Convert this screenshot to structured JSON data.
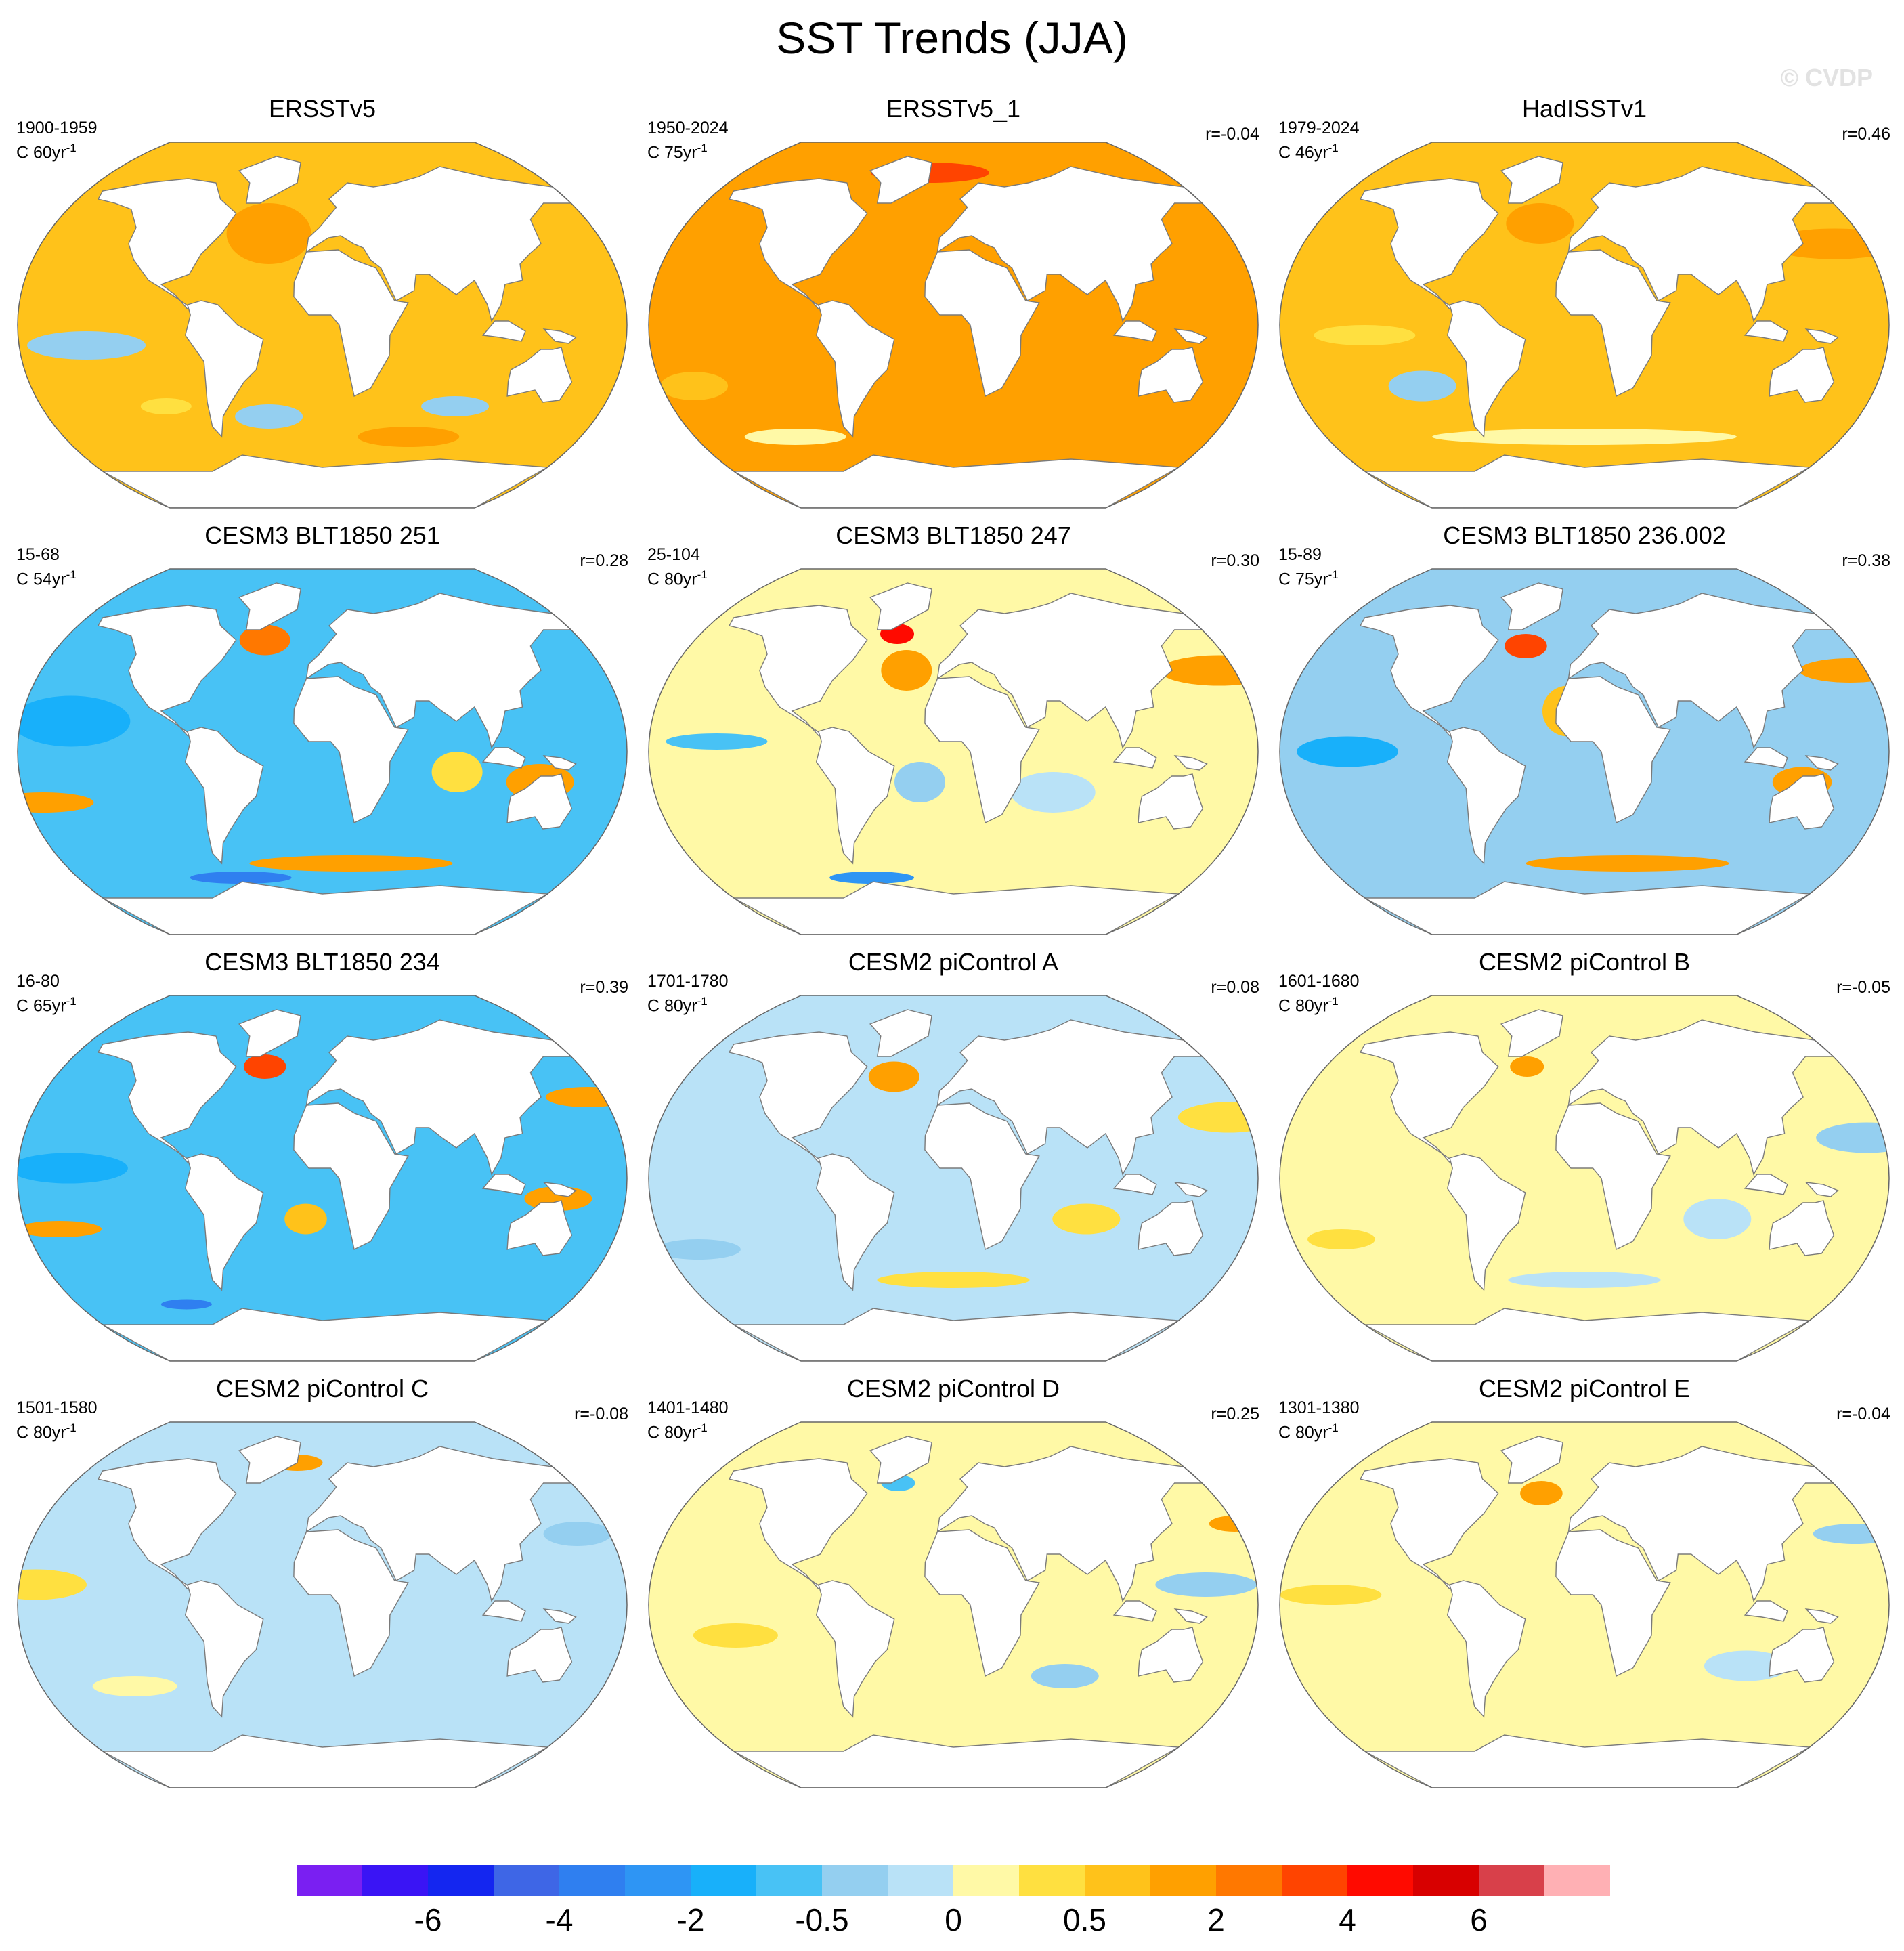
{
  "title": "SST Trends (JJA)",
  "watermark": "© CVDP",
  "panels": [
    {
      "title": "ERSSTv5",
      "period": "1900-1959",
      "units_prefix": "C 60yr",
      "units_exp": "-1",
      "r": "",
      "base_level": 0.6,
      "anomalies": [
        {
          "lon": 160,
          "lat": 20,
          "w": 90,
          "h": 40,
          "v": 0.9
        },
        {
          "lon": -140,
          "lat": -10,
          "w": 70,
          "h": 14,
          "v": -0.3
        },
        {
          "lon": 85,
          "lat": -40,
          "w": 40,
          "h": 10,
          "v": -0.4
        },
        {
          "lon": -100,
          "lat": -40,
          "w": 30,
          "h": 8,
          "v": 0.3
        },
        {
          "lon": -35,
          "lat": -45,
          "w": 40,
          "h": 12,
          "v": -0.3
        },
        {
          "lon": 60,
          "lat": -55,
          "w": 60,
          "h": 10,
          "v": 1.5
        },
        {
          "lon": -35,
          "lat": 45,
          "w": 50,
          "h": 30,
          "v": 1.1
        }
      ]
    },
    {
      "title": "ERSSTv5_1",
      "period": "1950-2024",
      "units_prefix": "C 75yr",
      "units_exp": "-1",
      "r": "r=-0.04",
      "base_level": 1.1,
      "anomalies": [
        {
          "lon": 80,
          "lat": -20,
          "w": 60,
          "h": 50,
          "v": 1.5
        },
        {
          "lon": 160,
          "lat": 20,
          "w": 80,
          "h": 30,
          "v": 1.4
        },
        {
          "lon": -30,
          "lat": 20,
          "w": 40,
          "h": 60,
          "v": 1.4
        },
        {
          "lon": -20,
          "lat": 75,
          "w": 70,
          "h": 10,
          "v": 3.5
        },
        {
          "lon": -110,
          "lat": -55,
          "w": 60,
          "h": 8,
          "v": 0.2
        },
        {
          "lon": -160,
          "lat": -30,
          "w": 40,
          "h": 14,
          "v": 0.5
        }
      ]
    },
    {
      "title": "HadISSTv1",
      "period": "1979-2024",
      "units_prefix": "C 46yr",
      "units_exp": "-1",
      "r": "r=0.46",
      "base_level": 0.9,
      "anomalies": [
        {
          "lon": 160,
          "lat": 40,
          "w": 80,
          "h": 15,
          "v": 1.4
        },
        {
          "lon": -130,
          "lat": -5,
          "w": 60,
          "h": 10,
          "v": 0.3
        },
        {
          "lon": -100,
          "lat": -30,
          "w": 40,
          "h": 15,
          "v": -0.5
        },
        {
          "lon": 0,
          "lat": -55,
          "w": 180,
          "h": 8,
          "v": 0.1
        },
        {
          "lon": -30,
          "lat": 50,
          "w": 40,
          "h": 20,
          "v": 1.4
        }
      ]
    },
    {
      "title": "CESM3 BLT1850 251",
      "period": "15-68",
      "units_prefix": "C 54yr",
      "units_exp": "-1",
      "r": "r=0.28",
      "base_level": -0.7,
      "anomalies": [
        {
          "lon": 130,
          "lat": -15,
          "w": 40,
          "h": 18,
          "v": 1.3
        },
        {
          "lon": -170,
          "lat": -25,
          "w": 60,
          "h": 10,
          "v": 1.2
        },
        {
          "lon": -150,
          "lat": 15,
          "w": 70,
          "h": 25,
          "v": -1.6
        },
        {
          "lon": -40,
          "lat": 55,
          "w": 30,
          "h": 15,
          "v": 2.2
        },
        {
          "lon": 20,
          "lat": -55,
          "w": 120,
          "h": 8,
          "v": 1.2
        },
        {
          "lon": -60,
          "lat": -62,
          "w": 60,
          "h": 6,
          "v": -3.5
        },
        {
          "lon": 80,
          "lat": -10,
          "w": 30,
          "h": 20,
          "v": 0.3
        }
      ]
    },
    {
      "title": "CESM3 BLT1850 247",
      "period": "25-104",
      "units_prefix": "C 80yr",
      "units_exp": "-1",
      "r": "r=0.30",
      "base_level": 0.2,
      "anomalies": [
        {
          "lon": 170,
          "lat": 40,
          "w": 70,
          "h": 15,
          "v": 1.4
        },
        {
          "lon": -40,
          "lat": 58,
          "w": 20,
          "h": 10,
          "v": 4.5
        },
        {
          "lon": -30,
          "lat": 40,
          "w": 30,
          "h": 20,
          "v": 1.4
        },
        {
          "lon": -140,
          "lat": 5,
          "w": 60,
          "h": 8,
          "v": -1.0
        },
        {
          "lon": -60,
          "lat": -62,
          "w": 50,
          "h": 6,
          "v": -3.0
        },
        {
          "lon": -20,
          "lat": -15,
          "w": 30,
          "h": 20,
          "v": -0.5
        },
        {
          "lon": 60,
          "lat": -20,
          "w": 50,
          "h": 20,
          "v": -0.2
        }
      ]
    },
    {
      "title": "CESM3 BLT1850 236.002",
      "period": "15-89",
      "units_prefix": "C 75yr",
      "units_exp": "-1",
      "r": "r=0.38",
      "base_level": -0.4,
      "anomalies": [
        {
          "lon": 170,
          "lat": 40,
          "w": 60,
          "h": 12,
          "v": 1.9
        },
        {
          "lon": -40,
          "lat": 52,
          "w": 25,
          "h": 12,
          "v": 3.5
        },
        {
          "lon": -140,
          "lat": 0,
          "w": 60,
          "h": 15,
          "v": -1.8
        },
        {
          "lon": 130,
          "lat": -15,
          "w": 35,
          "h": 15,
          "v": 1.3
        },
        {
          "lon": 30,
          "lat": -55,
          "w": 120,
          "h": 8,
          "v": 1.6
        },
        {
          "lon": -10,
          "lat": 20,
          "w": 30,
          "h": 25,
          "v": 0.8
        }
      ]
    },
    {
      "title": "CESM3 BLT1850 234",
      "period": "16-80",
      "units_prefix": "C 65yr",
      "units_exp": "-1",
      "r": "r=0.39",
      "base_level": -0.9,
      "anomalies": [
        {
          "lon": 170,
          "lat": 40,
          "w": 50,
          "h": 10,
          "v": 1.6
        },
        {
          "lon": -40,
          "lat": 55,
          "w": 25,
          "h": 12,
          "v": 3.0
        },
        {
          "lon": -150,
          "lat": 5,
          "w": 70,
          "h": 15,
          "v": -1.8
        },
        {
          "lon": 140,
          "lat": -10,
          "w": 40,
          "h": 12,
          "v": 1.3
        },
        {
          "lon": -160,
          "lat": -25,
          "w": 50,
          "h": 8,
          "v": 1.3
        },
        {
          "lon": -100,
          "lat": -62,
          "w": 30,
          "h": 5,
          "v": -4.0
        },
        {
          "lon": -10,
          "lat": -20,
          "w": 25,
          "h": 15,
          "v": 0.8
        }
      ]
    },
    {
      "title": "CESM2 piControl A",
      "period": "1701-1780",
      "units_prefix": "C 80yr",
      "units_exp": "-1",
      "r": "r=0.08",
      "base_level": -0.1,
      "anomalies": [
        {
          "lon": -40,
          "lat": 50,
          "w": 30,
          "h": 15,
          "v": 1.4
        },
        {
          "lon": 170,
          "lat": 30,
          "w": 60,
          "h": 15,
          "v": 0.4
        },
        {
          "lon": 80,
          "lat": -20,
          "w": 40,
          "h": 15,
          "v": 0.3
        },
        {
          "lon": -160,
          "lat": -35,
          "w": 50,
          "h": 10,
          "v": -0.4
        },
        {
          "lon": 0,
          "lat": -50,
          "w": 90,
          "h": 8,
          "v": 0.3
        }
      ]
    },
    {
      "title": "CESM2 piControl B",
      "period": "1601-1680",
      "units_prefix": "C 80yr",
      "units_exp": "-1",
      "r": "r=-0.05",
      "base_level": 0.1,
      "anomalies": [
        {
          "lon": -40,
          "lat": 55,
          "w": 20,
          "h": 10,
          "v": 1.3
        },
        {
          "lon": 170,
          "lat": 20,
          "w": 60,
          "h": 15,
          "v": -0.3
        },
        {
          "lon": -150,
          "lat": -30,
          "w": 40,
          "h": 10,
          "v": 0.4
        },
        {
          "lon": 80,
          "lat": -20,
          "w": 40,
          "h": 20,
          "v": -0.2
        },
        {
          "lon": 0,
          "lat": -50,
          "w": 90,
          "h": 8,
          "v": -0.2
        }
      ]
    },
    {
      "title": "CESM2 piControl C",
      "period": "1501-1580",
      "units_prefix": "C 80yr",
      "units_exp": "-1",
      "r": "r=-0.08",
      "base_level": -0.1,
      "anomalies": [
        {
          "lon": -170,
          "lat": 10,
          "w": 60,
          "h": 15,
          "v": 0.4
        },
        {
          "lon": 160,
          "lat": 35,
          "w": 40,
          "h": 12,
          "v": -0.4
        },
        {
          "lon": -20,
          "lat": 70,
          "w": 30,
          "h": 8,
          "v": 1.3
        },
        {
          "lon": 70,
          "lat": -30,
          "w": 50,
          "h": 15,
          "v": -0.2
        },
        {
          "lon": -120,
          "lat": -40,
          "w": 50,
          "h": 10,
          "v": 0.2
        }
      ]
    },
    {
      "title": "CESM2 piControl D",
      "period": "1401-1480",
      "units_prefix": "C 80yr",
      "units_exp": "-1",
      "r": "r=0.25",
      "base_level": 0.0,
      "anomalies": [
        {
          "lon": 180,
          "lat": 40,
          "w": 30,
          "h": 8,
          "v": 1.3
        },
        {
          "lon": 150,
          "lat": 10,
          "w": 60,
          "h": 12,
          "v": -0.3
        },
        {
          "lon": -130,
          "lat": -15,
          "w": 50,
          "h": 12,
          "v": 0.3
        },
        {
          "lon": 70,
          "lat": -35,
          "w": 40,
          "h": 12,
          "v": -0.3
        },
        {
          "lon": -40,
          "lat": 60,
          "w": 20,
          "h": 8,
          "v": -1.0
        }
      ]
    },
    {
      "title": "CESM2 piControl E",
      "period": "1301-1380",
      "units_prefix": "C 80yr",
      "units_exp": "-1",
      "r": "r=-0.04",
      "base_level": 0.05,
      "anomalies": [
        {
          "lon": -30,
          "lat": 55,
          "w": 25,
          "h": 12,
          "v": 1.5
        },
        {
          "lon": 170,
          "lat": 35,
          "w": 50,
          "h": 10,
          "v": -0.5
        },
        {
          "lon": -150,
          "lat": 5,
          "w": 60,
          "h": 10,
          "v": 0.4
        },
        {
          "lon": 100,
          "lat": -30,
          "w": 50,
          "h": 15,
          "v": -0.2
        },
        {
          "lon": -160,
          "lat": -30,
          "w": 50,
          "h": 10,
          "v": 0.2
        }
      ]
    }
  ],
  "colorbar": {
    "colors": [
      "#7a1ff2",
      "#3a14f5",
      "#1426f0",
      "#3e66e6",
      "#2f7ff0",
      "#2e95f4",
      "#18b0fa",
      "#48c2f5",
      "#94cff0",
      "#b9e2f7",
      "#fff9a6",
      "#ffe040",
      "#ffc21a",
      "#ffa000",
      "#ff7800",
      "#ff4400",
      "#ff0a00",
      "#d80000",
      "#d8404a",
      "#ffb0b4"
    ],
    "boundaries": [
      -8,
      -6,
      -5,
      -4,
      -3,
      -2,
      -1,
      -0.5,
      -0.25,
      0,
      0.25,
      0.5,
      1,
      2,
      3,
      4,
      5,
      6,
      7
    ],
    "labels": [
      "-6",
      "-4",
      "-2",
      "-0.5",
      "0",
      "0.5",
      "2",
      "4",
      "6"
    ],
    "label_boundary_index": [
      1,
      3,
      5,
      7,
      9,
      11,
      13,
      15,
      17
    ]
  }
}
